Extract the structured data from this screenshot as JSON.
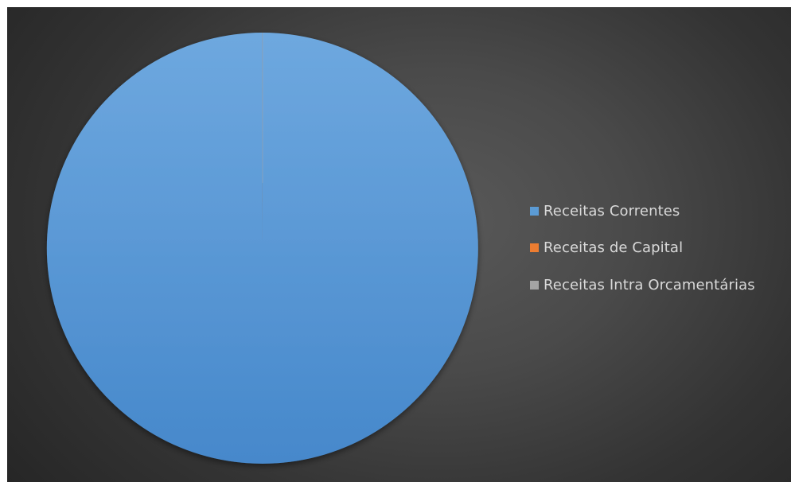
{
  "chart_data": {
    "type": "pie",
    "title": "",
    "start_angle_deg": 0,
    "slices": [
      {
        "name": "Receitas Correntes",
        "value": 99.98,
        "color": "#5b9bd5"
      },
      {
        "name": "Receitas de Capital",
        "value": 0.01,
        "color": "#ed7d31"
      },
      {
        "name": "Receitas Intra Orcamentárias",
        "value": 0.01,
        "color": "#a5a5a5"
      }
    ],
    "legend": {
      "position": "right"
    }
  }
}
